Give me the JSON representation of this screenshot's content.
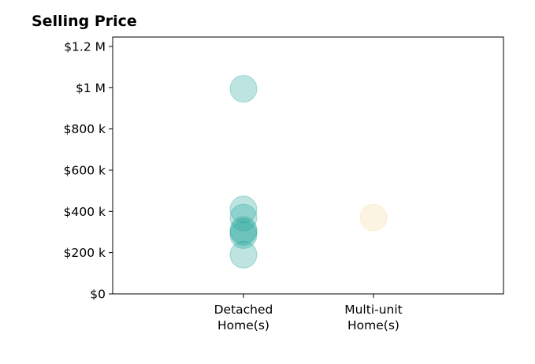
{
  "chart_data": {
    "type": "scatter",
    "title": "Selling Price",
    "xlabel": "",
    "ylabel": "",
    "categories": [
      [
        "Detached",
        "Home(s)"
      ],
      [
        "Multi-unit",
        "Home(s)"
      ]
    ],
    "ylim": [
      0,
      1200000
    ],
    "yticks": [
      {
        "value": 0,
        "label": "$0"
      },
      {
        "value": 200000,
        "label": "$200 k"
      },
      {
        "value": 400000,
        "label": "$400 k"
      },
      {
        "value": 600000,
        "label": "$600 k"
      },
      {
        "value": 800000,
        "label": "$800 k"
      },
      {
        "value": 1000000,
        "label": "$1 M"
      },
      {
        "value": 1200000,
        "label": "$1.2 M"
      }
    ],
    "grid": false,
    "series": [
      {
        "category": 0,
        "color": "#26a69a",
        "values": [
          995000,
          410000,
          370000,
          310000,
          300000,
          285000,
          190000
        ]
      },
      {
        "category": 1,
        "color": "#f5d9a0",
        "values": [
          370000
        ]
      }
    ]
  }
}
